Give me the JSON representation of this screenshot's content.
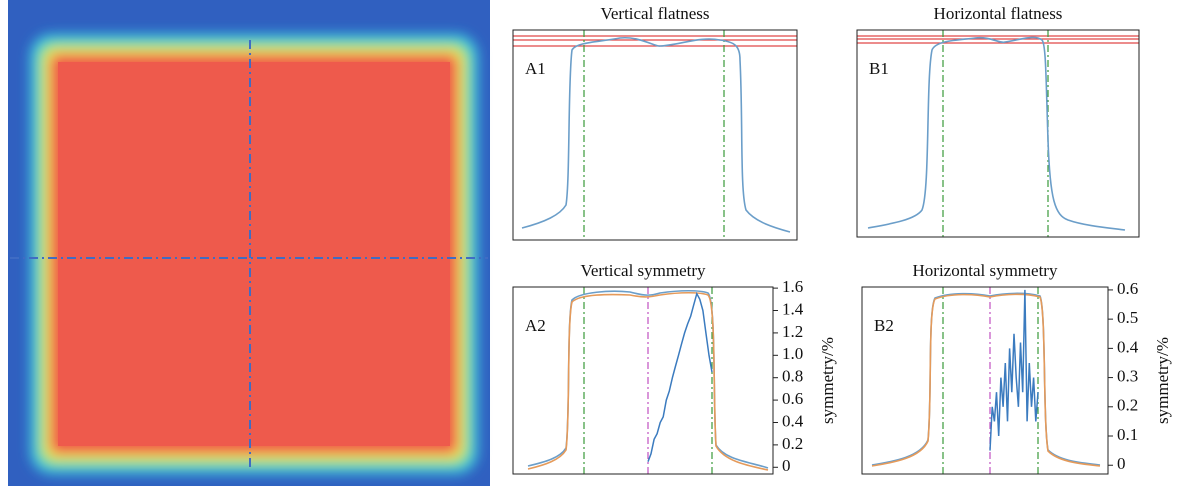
{
  "chart_data": [
    {
      "type": "profile",
      "title": "Vertical flatness",
      "label": "A1"
    },
    {
      "type": "profile",
      "title": "Horizontal flatness",
      "label": "B1"
    },
    {
      "type": "line",
      "title": "Vertical symmetry",
      "label": "A2",
      "y2label": "symmetry/%",
      "y2lim": [
        -0.06,
        1.61
      ],
      "y2ticks": [
        0,
        0.2,
        0.4,
        0.6,
        0.8,
        {
          "value": 1,
          "label": "1.0"
        },
        1.2,
        1.4,
        1.6
      ],
      "series": [
        {
          "color": "#3b7bbf",
          "axis": "y2",
          "values": [
            0.05,
            0.12,
            0.25,
            0.3,
            0.4,
            0.45,
            0.6,
            0.68,
            0.8,
            0.9,
            1.0,
            1.1,
            1.2,
            1.28,
            1.35,
            1.45,
            1.55,
            1.5,
            1.4,
            1.2,
            1.0,
            0.85
          ]
        }
      ]
    },
    {
      "type": "line",
      "title": "Horizontal symmetry",
      "label": "B2",
      "y2label": "symmetry/%",
      "y2lim": [
        -0.03,
        0.61
      ],
      "y2ticks": [
        0,
        0.1,
        0.2,
        0.3,
        0.4,
        0.5,
        0.6
      ],
      "series": [
        {
          "color": "#3b7bbf",
          "axis": "y2",
          "values": [
            0.05,
            0.2,
            0.15,
            0.25,
            0.1,
            0.3,
            0.2,
            0.35,
            0.15,
            0.4,
            0.25,
            0.45,
            0.3,
            0.2,
            0.42,
            0.25,
            0.6,
            0.15,
            0.35,
            0.2,
            0.3,
            0.15,
            0.25
          ]
        }
      ]
    }
  ]
}
